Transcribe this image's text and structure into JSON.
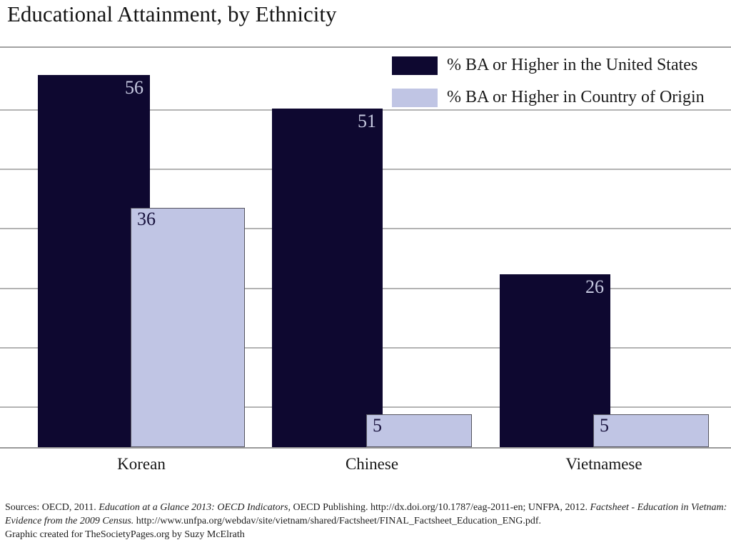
{
  "title": "Educational Attainment, by Ethnicity",
  "chart_data": {
    "type": "bar",
    "title": "Educational Attainment, by Ethnicity",
    "categories": [
      "Korean",
      "Chinese",
      "Vietnamese"
    ],
    "series": [
      {
        "name": "% BA or Higher in the United States",
        "color": "#0e0830",
        "label_text_color": "#c6c9e0",
        "values": [
          56,
          51,
          26
        ]
      },
      {
        "name": "% BA or Higher in Country of Origin",
        "color": "#c0c5e4",
        "label_text_color": "#17113c",
        "values": [
          36,
          5,
          5
        ]
      }
    ],
    "value_labels_shown": true,
    "ylim": [
      0,
      60
    ],
    "ylabel": "",
    "xlabel": "",
    "grid": "horizontal gridlines, no y-axis tick labels",
    "legend_position": "top-right"
  },
  "colors": {
    "us_bar": "#0e0830",
    "origin_bar": "#c0c5e4",
    "gridline": "#b3b3b3",
    "axis_line": "#9a9a9a",
    "background": "#ffffff"
  },
  "sources": {
    "line1": {
      "s1": "Sources: OECD, 2011. ",
      "s2": "Education at a Glance 2013: OECD Indicators,",
      "s3": " OECD Publishing. http://dx.doi.org/10.1787/eag-2011-en; UNFPA, 2012.  ",
      "s4": "Factsheet - Education in Vietnam:"
    },
    "line2": {
      "s1": "Evidence from the 2009 Census.",
      "s2": " http://www.unfpa.org/webdav/site/vietnam/shared/Factsheet/FINAL_Factsheet_Education_ENG.pdf."
    },
    "line3": "Graphic created for TheSocietyPages.org by Suzy McElrath"
  }
}
